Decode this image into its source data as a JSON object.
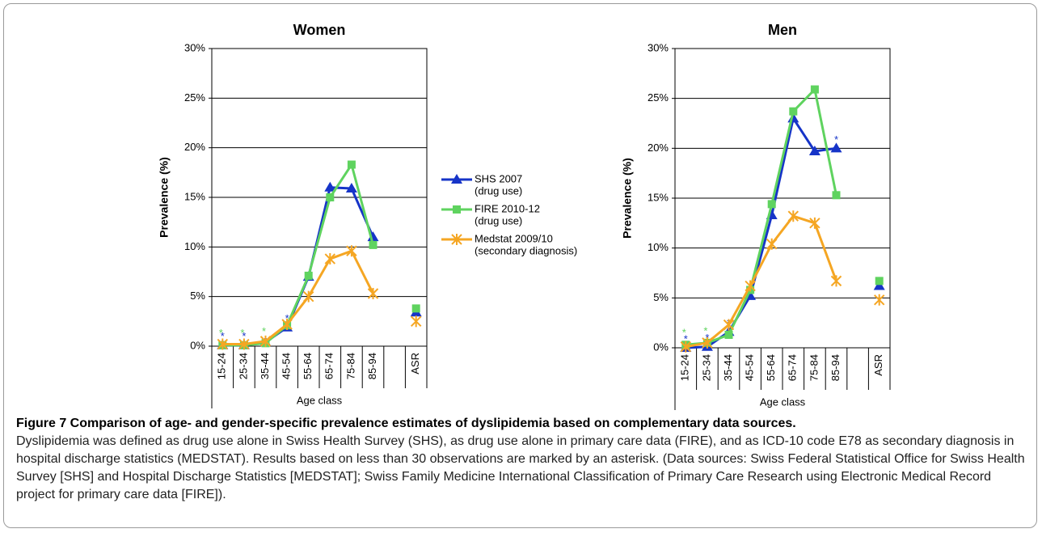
{
  "chart_data": [
    {
      "type": "line",
      "title": "Women",
      "y_label": "Prevalence (%)",
      "x_label": "Age class",
      "categories": [
        "15-24",
        "25-34",
        "35-44",
        "45-54",
        "55-64",
        "65-74",
        "75-84",
        "85-94",
        null,
        "ASR"
      ],
      "ylim": [
        0,
        30
      ],
      "yticks": [
        {
          "value": 0,
          "label": "0%"
        },
        {
          "value": 5,
          "label": "5%"
        },
        {
          "value": 10,
          "label": "10%"
        },
        {
          "value": 15,
          "label": "15%"
        },
        {
          "value": 20,
          "label": "20%"
        },
        {
          "value": 25,
          "label": "25%"
        },
        {
          "value": 30,
          "label": "30%"
        }
      ],
      "grid": true,
      "legend": true,
      "series": [
        {
          "name": "SHS 2007",
          "description": "(drug use)",
          "color": "#1634c8",
          "marker": "triangle",
          "values": [
            0.1,
            0.1,
            0.4,
            1.9,
            7.0,
            16.0,
            15.9,
            11.0,
            null,
            3.4
          ],
          "notes": [
            "*",
            "*",
            null,
            "*",
            null,
            null,
            null,
            null,
            null,
            null
          ]
        },
        {
          "name": "FIRE 2010-12",
          "description": "(drug use)",
          "color": "#5fd35f",
          "marker": "square",
          "values": [
            0.1,
            0.1,
            0.3,
            2.1,
            7.1,
            15.0,
            18.3,
            10.2,
            null,
            3.8
          ],
          "notes": [
            "*",
            "*",
            "*",
            null,
            null,
            null,
            null,
            null,
            null,
            null
          ]
        },
        {
          "name": "Medstat 2009/10",
          "description": "(secondary diagnosis)",
          "color": "#f5a623",
          "marker": "asterisk",
          "values": [
            0.2,
            0.2,
            0.5,
            2.2,
            5.0,
            8.8,
            9.6,
            5.3,
            null,
            2.5
          ]
        }
      ]
    },
    {
      "type": "line",
      "title": "Men",
      "y_label": "Prevalence (%)",
      "x_label": "Age class",
      "categories": [
        "15-24",
        "25-34",
        "35-44",
        "45-54",
        "55-64",
        "65-74",
        "75-84",
        "85-94",
        null,
        "ASR"
      ],
      "ylim": [
        0,
        30
      ],
      "yticks": [
        {
          "value": 0,
          "label": "0%"
        },
        {
          "value": 5,
          "label": "5%"
        },
        {
          "value": 10,
          "label": "10%"
        },
        {
          "value": 15,
          "label": "15%"
        },
        {
          "value": 20,
          "label": "20%"
        },
        {
          "value": 25,
          "label": "25%"
        },
        {
          "value": 30,
          "label": "30%"
        }
      ],
      "grid": true,
      "legend": false,
      "series": [
        {
          "color": "#1634c8",
          "marker": "triangle",
          "values": [
            0.0,
            0.1,
            1.6,
            5.2,
            13.3,
            23.0,
            19.7,
            20.0,
            null,
            6.2
          ],
          "notes": [
            "*",
            "*",
            "*",
            null,
            null,
            null,
            null,
            "*",
            null,
            null
          ]
        },
        {
          "color": "#5fd35f",
          "marker": "square",
          "values": [
            0.3,
            0.5,
            1.3,
            5.8,
            14.4,
            23.7,
            25.9,
            15.3,
            null,
            6.7
          ],
          "notes": [
            "*",
            "*",
            null,
            null,
            null,
            null,
            null,
            null,
            null,
            null
          ]
        },
        {
          "color": "#f5a623",
          "marker": "asterisk",
          "values": [
            0.1,
            0.5,
            2.3,
            6.2,
            10.4,
            13.2,
            12.5,
            6.7,
            null,
            4.8
          ]
        }
      ]
    }
  ],
  "caption": {
    "title": "Figure 7 Comparison of age- and gender-specific prevalence estimates of dyslipidemia based on complementary data sources.",
    "text": "Dyslipidemia was defined as drug use alone in Swiss Health Survey (SHS), as drug use alone in primary care data (FIRE), and as ICD-10 code E78 as secondary diagnosis in hospital discharge statistics (MEDSTAT). Results based on less than 30 observations are marked by an asterisk. (Data sources: Swiss Federal Statistical Office for Swiss Health Survey [SHS] and Hospital Discharge Statistics [MEDSTAT]; Swiss Family Medicine International Classification of Primary Care Research using Electronic Medical Record project for primary care data [FIRE])."
  }
}
